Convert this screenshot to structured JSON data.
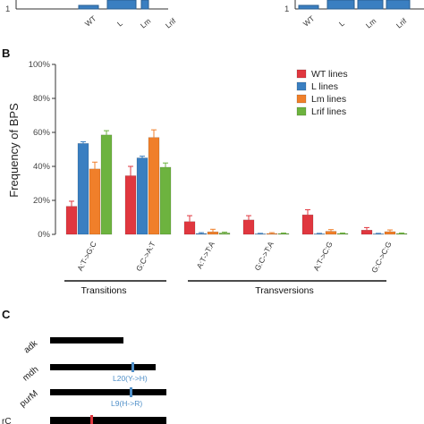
{
  "panel_labels": {
    "a": "",
    "b": "B",
    "c": "C"
  },
  "top_strip": {
    "left": {
      "one": "1",
      "categories": [
        "WT",
        "L",
        "Lm",
        "Lrif"
      ]
    },
    "right": {
      "one": "1",
      "categories": [
        "WT",
        "L",
        "Lm",
        "Lrif"
      ]
    }
  },
  "chart_data": {
    "type": "bar",
    "title": "",
    "ylabel": "Frequency of BPS",
    "xlabel": "",
    "ylim": [
      0,
      100
    ],
    "yticks": [
      "0%",
      "20%",
      "40%",
      "60%",
      "80%",
      "100%"
    ],
    "grid": false,
    "legend_position": "top-right",
    "categories": [
      "A:T->G:C",
      "G:C->A:T",
      "A:T->T:A",
      "G:C->T:A",
      "A:T->C:G",
      "G:C->C:G"
    ],
    "series": [
      {
        "name": "WT lines",
        "color": "#e0373f",
        "values": [
          16.5,
          34.5,
          7.5,
          8.5,
          11.5,
          2.5
        ],
        "errors": [
          3,
          5.5,
          3.5,
          2.5,
          3,
          1.5
        ]
      },
      {
        "name": "L lines",
        "color": "#3a7fc1",
        "values": [
          53.5,
          45,
          0.5,
          0.3,
          0.3,
          0.3
        ],
        "errors": [
          1,
          1,
          0.5,
          0.3,
          0.3,
          0.3
        ]
      },
      {
        "name": "Lm lines",
        "color": "#f07f2a",
        "values": [
          38.5,
          57,
          1.5,
          0.5,
          1.8,
          1.6
        ],
        "errors": [
          4,
          4.5,
          1.5,
          0.5,
          1,
          1
        ]
      },
      {
        "name": "Lrif lines",
        "color": "#6db33f",
        "values": [
          58.5,
          39.5,
          0.8,
          0.5,
          0.5,
          0.5
        ],
        "errors": [
          2.5,
          2.5,
          0.5,
          0.3,
          0.3,
          0.3
        ]
      }
    ],
    "groups": [
      {
        "label": "Transitions",
        "categories": [
          "A:T->G:C",
          "G:C->A:T"
        ]
      },
      {
        "label": "Transversions",
        "categories": [
          "A:T->T:A",
          "G:C->T:A",
          "A:T->C:G",
          "G:C->C:G"
        ]
      }
    ]
  },
  "panel_c": {
    "genes": [
      {
        "name": "adk",
        "mutation": ""
      },
      {
        "name": "mdh",
        "mutation": "L20(Y->H)"
      },
      {
        "name": "purM",
        "mutation": "L9(H->R)"
      },
      {
        "name": "rC",
        "mutation": ""
      }
    ]
  }
}
